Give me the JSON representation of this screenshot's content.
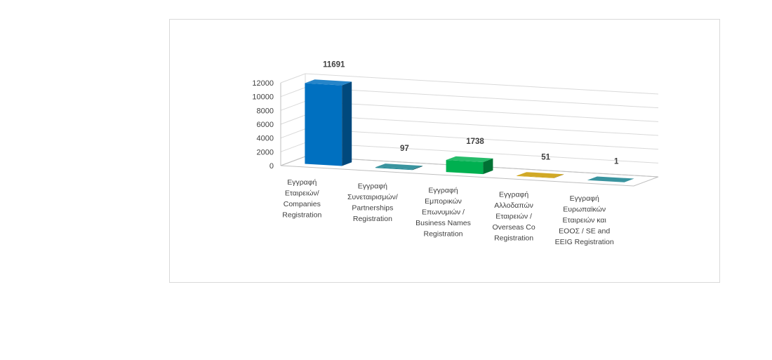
{
  "chart_data": {
    "type": "bar",
    "title": "",
    "xlabel": "",
    "ylabel": "",
    "ylim": [
      0,
      12000
    ],
    "y_ticks": [
      "0",
      "2000",
      "4000",
      "6000",
      "8000",
      "10000",
      "12000"
    ],
    "grid": true,
    "legend": "none",
    "categories": [
      [
        "Εγγραφή",
        "Εταιρειών/",
        "Companies",
        "Registration"
      ],
      [
        "Εγγραφή",
        "Συνεταιρισμών/",
        "Partnerships",
        "Registration"
      ],
      [
        "Εγγραφή",
        "Εμπορικών",
        "Επωνυμιών /",
        "Business Names",
        "Registration"
      ],
      [
        "Εγγραφή",
        "Αλλοδαπών",
        "Εταιρειών /",
        "Overseas Co",
        "Registration"
      ],
      [
        "Εγγραφή",
        "Ευρωπαϊκών",
        "Εταιρειών και",
        "ΕΟΟΣ / SE and",
        "EEIG Registration"
      ]
    ],
    "values": [
      11691,
      97,
      1738,
      51,
      1
    ],
    "data_labels": [
      "11691",
      "97",
      "1738",
      "51",
      "1"
    ],
    "colors": [
      "#0070c0",
      "#17818e",
      "#00b050",
      "#c99a00",
      "#17818e"
    ]
  }
}
